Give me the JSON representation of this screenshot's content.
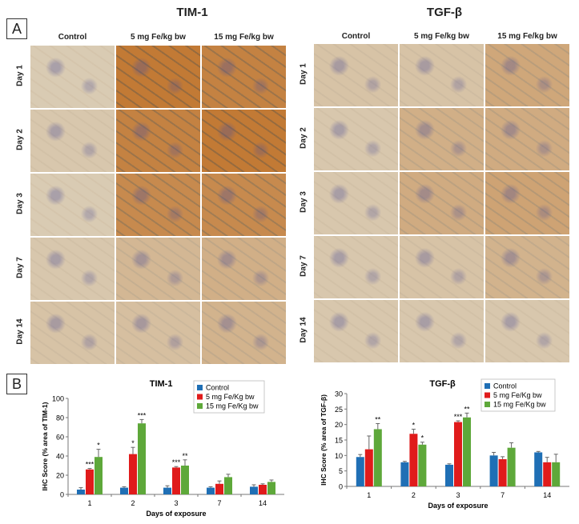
{
  "panel_a_label": "A",
  "panel_b_label": "B",
  "left_grid": {
    "title": "TIM-1",
    "columns": [
      "Control",
      "5 mg Fe/kg bw",
      "15 mg Fe/kg bw"
    ],
    "rows": [
      "Day 1",
      "Day 2",
      "Day 3",
      "Day 7",
      "Day 14"
    ]
  },
  "right_grid": {
    "title": "TGF-β",
    "columns": [
      "Control",
      "5 mg Fe/kg bw",
      "15 mg Fe/kg bw"
    ],
    "rows": [
      "Day 1",
      "Day 2",
      "Day 3",
      "Day 7",
      "Day 14"
    ]
  },
  "colors": {
    "control": "#1f6fb5",
    "mid": "#e01b1b",
    "high": "#5ea83a",
    "light_tissue": "#d9cbb3",
    "brown_tissue": "#c27a35"
  },
  "chart_data": [
    {
      "type": "bar",
      "title": "TIM-1",
      "xlabel": "Days of exposure",
      "ylabel": "IHC Score (% area of TIM-1)",
      "categories": [
        "1",
        "2",
        "3",
        "7",
        "14"
      ],
      "ylim": [
        0,
        100
      ],
      "yticks": [
        0,
        20,
        40,
        60,
        80,
        100
      ],
      "legend": "top-right",
      "series": [
        {
          "name": "Control",
          "values": [
            5,
            7,
            7,
            7,
            8
          ],
          "errors": [
            2,
            1,
            2,
            1,
            2
          ]
        },
        {
          "name": "5 mg Fe/Kg bw",
          "values": [
            26,
            42,
            28,
            11,
            10
          ],
          "errors": [
            1,
            7,
            1,
            3,
            1
          ]
        },
        {
          "name": "15 mg Fe/Kg bw",
          "values": [
            39,
            74,
            30,
            18,
            13
          ],
          "errors": [
            8,
            4,
            6,
            3,
            2
          ]
        }
      ],
      "significance": [
        [
          "",
          "***",
          "*"
        ],
        [
          "",
          "*",
          "***"
        ],
        [
          "",
          "***",
          "**"
        ],
        [
          "",
          "",
          ""
        ],
        [
          "",
          "",
          ""
        ]
      ]
    },
    {
      "type": "bar",
      "title": "TGF-β",
      "xlabel": "Days of exposure",
      "ylabel": "IHC Score (% area of TGF-β)",
      "categories": [
        "1",
        "2",
        "3",
        "7",
        "14"
      ],
      "ylim": [
        0,
        30
      ],
      "yticks": [
        0,
        5,
        10,
        15,
        20,
        25,
        30
      ],
      "legend": "top-right",
      "series": [
        {
          "name": "Control",
          "values": [
            9.5,
            7.8,
            7.0,
            10.0,
            11.0
          ],
          "errors": [
            0.8,
            0.3,
            0.3,
            1.0,
            0.3
          ]
        },
        {
          "name": "5 mg Fe/Kg bw",
          "values": [
            12.0,
            17.0,
            20.8,
            8.8,
            7.8
          ],
          "errors": [
            4.3,
            1.5,
            0.4,
            0.8,
            1.6
          ]
        },
        {
          "name": "15 mg Fe/Kg bw",
          "values": [
            18.5,
            13.5,
            22.3,
            12.5,
            7.8
          ],
          "errors": [
            1.8,
            0.8,
            1.4,
            1.6,
            2.6
          ]
        }
      ],
      "significance": [
        [
          "",
          "",
          "**"
        ],
        [
          "",
          "*",
          "*"
        ],
        [
          "",
          "***",
          "**"
        ],
        [
          "",
          "",
          ""
        ],
        [
          "",
          "",
          ""
        ]
      ]
    }
  ],
  "tile_intensity": {
    "left": [
      [
        0.0,
        1.0,
        0.9
      ],
      [
        0.05,
        0.9,
        1.0
      ],
      [
        0.0,
        0.8,
        0.8
      ],
      [
        0.05,
        0.25,
        0.35
      ],
      [
        0.1,
        0.15,
        0.3
      ]
    ],
    "right": [
      [
        0.1,
        0.1,
        0.45
      ],
      [
        0.05,
        0.35,
        0.4
      ],
      [
        0.05,
        0.4,
        0.5
      ],
      [
        0.05,
        0.1,
        0.3
      ],
      [
        0.05,
        0.05,
        0.05
      ]
    ]
  }
}
